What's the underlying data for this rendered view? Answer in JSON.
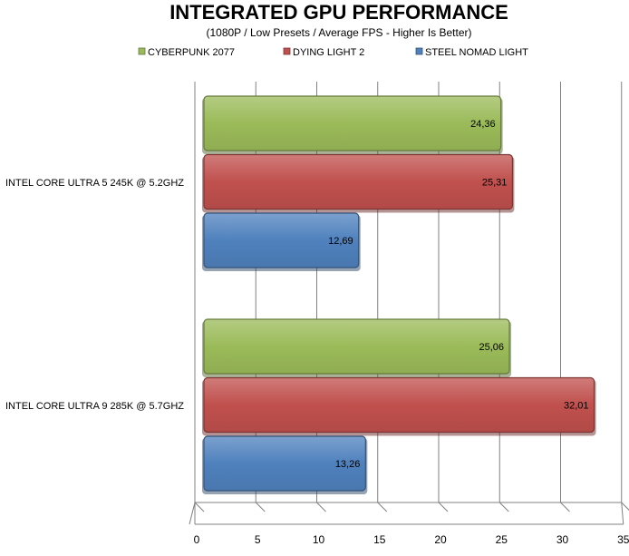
{
  "chart_data": {
    "type": "bar",
    "orientation": "horizontal",
    "title": "INTEGRATED GPU PERFORMANCE",
    "subtitle": "(1080P / Low Presets / Average FPS  - Higher Is Better)",
    "xlabel": "",
    "ylabel": "",
    "xlim": [
      0,
      35
    ],
    "x_ticks": [
      0,
      5,
      10,
      15,
      20,
      25,
      30,
      35
    ],
    "grid": true,
    "legend_position": "top",
    "categories": [
      "INTEL CORE ULTRA 5 245K @ 5.2GHZ",
      "INTEL CORE ULTRA 9 285K @ 5.7GHZ"
    ],
    "series": [
      {
        "name": "CYBERPUNK 2077",
        "color": "#9BBB59",
        "values": [
          24.36,
          25.06
        ],
        "labels": [
          "24,36",
          "25,06"
        ]
      },
      {
        "name": "DYING LIGHT 2",
        "color": "#C0504D",
        "values": [
          25.31,
          32.01
        ],
        "labels": [
          "25,31",
          "32,01"
        ]
      },
      {
        "name": "STEEL NOMAD LIGHT",
        "color": "#4F81BD",
        "values": [
          12.69,
          13.26
        ],
        "labels": [
          "12,69",
          "13,26"
        ]
      }
    ]
  }
}
